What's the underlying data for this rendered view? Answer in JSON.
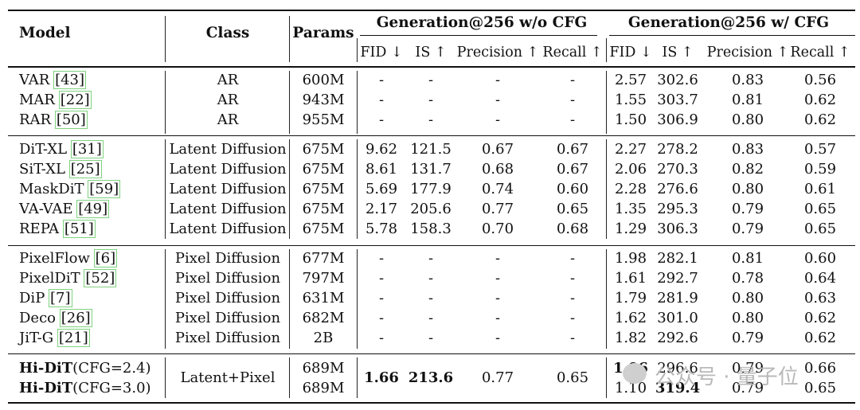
{
  "header": {
    "model": "Model",
    "class": "Class",
    "params": "Params",
    "group_no_cfg": "Generation@256 w/o CFG",
    "group_cfg": "Generation@256 w/ CFG",
    "sub_no_cfg": [
      "FID ↓",
      "IS ↑",
      "Precision ↑",
      "Recall ↑"
    ],
    "sub_cfg": [
      "FID ↓",
      "IS ↑",
      "Precision ↑",
      "Recall ↑"
    ]
  },
  "groups": [
    {
      "rows": [
        {
          "name": "VAR",
          "ref": "[43]",
          "cls": "AR",
          "params": "600M",
          "nocfg": [
            "-",
            "-",
            "-",
            "-"
          ],
          "cfg": [
            "2.57",
            "302.6",
            "0.83",
            "0.56"
          ]
        },
        {
          "name": "MAR",
          "ref": "[22]",
          "cls": "AR",
          "params": "943M",
          "nocfg": [
            "-",
            "-",
            "-",
            "-"
          ],
          "cfg": [
            "1.55",
            "303.7",
            "0.81",
            "0.62"
          ]
        },
        {
          "name": "RAR",
          "ref": "[50]",
          "cls": "AR",
          "params": "955M",
          "nocfg": [
            "-",
            "-",
            "-",
            "-"
          ],
          "cfg": [
            "1.50",
            "306.9",
            "0.80",
            "0.62"
          ]
        }
      ]
    },
    {
      "rows": [
        {
          "name": "DiT-XL",
          "ref": "[31]",
          "cls": "Latent Diffusion",
          "params": "675M",
          "nocfg": [
            "9.62",
            "121.5",
            "0.67",
            "0.67"
          ],
          "cfg": [
            "2.27",
            "278.2",
            "0.83",
            "0.57"
          ]
        },
        {
          "name": "SiT-XL",
          "ref": "[25]",
          "cls": "Latent Diffusion",
          "params": "675M",
          "nocfg": [
            "8.61",
            "131.7",
            "0.68",
            "0.67"
          ],
          "cfg": [
            "2.06",
            "270.3",
            "0.82",
            "0.59"
          ]
        },
        {
          "name": "MaskDiT",
          "ref": "[59]",
          "cls": "Latent Diffusion",
          "params": "675M",
          "nocfg": [
            "5.69",
            "177.9",
            "0.74",
            "0.60"
          ],
          "cfg": [
            "2.28",
            "276.6",
            "0.80",
            "0.61"
          ]
        },
        {
          "name": "VA-VAE",
          "ref": "[49]",
          "cls": "Latent Diffusion",
          "params": "675M",
          "nocfg": [
            "2.17",
            "205.6",
            "0.77",
            "0.65"
          ],
          "cfg": [
            "1.35",
            "295.3",
            "0.79",
            "0.65"
          ]
        },
        {
          "name": "REPA",
          "ref": "[51]",
          "cls": "Latent Diffusion",
          "params": "675M",
          "nocfg": [
            "5.78",
            "158.3",
            "0.70",
            "0.68"
          ],
          "cfg": [
            "1.29",
            "306.3",
            "0.79",
            "0.65"
          ]
        }
      ]
    },
    {
      "rows": [
        {
          "name": "PixelFlow",
          "ref": "[6]",
          "cls": "Pixel Diffusion",
          "params": "677M",
          "nocfg": [
            "-",
            "-",
            "-",
            "-"
          ],
          "cfg": [
            "1.98",
            "282.1",
            "0.81",
            "0.60"
          ]
        },
        {
          "name": "PixelDiT",
          "ref": "[52]",
          "cls": "Pixel Diffusion",
          "params": "797M",
          "nocfg": [
            "-",
            "-",
            "-",
            "-"
          ],
          "cfg": [
            "1.61",
            "292.7",
            "0.78",
            "0.64"
          ]
        },
        {
          "name": "DiP",
          "ref": "[7]",
          "cls": "Pixel Diffusion",
          "params": "631M",
          "nocfg": [
            "-",
            "-",
            "-",
            "-"
          ],
          "cfg": [
            "1.79",
            "281.9",
            "0.80",
            "0.63"
          ]
        },
        {
          "name": "Deco",
          "ref": "[26]",
          "cls": "Pixel Diffusion",
          "params": "682M",
          "nocfg": [
            "-",
            "-",
            "-",
            "-"
          ],
          "cfg": [
            "1.62",
            "301.0",
            "0.80",
            "0.62"
          ]
        },
        {
          "name": "JiT-G",
          "ref": "[21]",
          "cls": "Pixel Diffusion",
          "params": "2B",
          "nocfg": [
            "-",
            "-",
            "-",
            "-"
          ],
          "cfg": [
            "1.82",
            "292.6",
            "0.79",
            "0.62"
          ]
        }
      ]
    }
  ],
  "ours": {
    "name": "Hi-DiT",
    "variants": [
      "(CFG=2.4)",
      "(CFG=3.0)"
    ],
    "cls": "Latent+Pixel",
    "params": [
      "689M",
      "689M"
    ],
    "nocfg": [
      "1.66",
      "213.6",
      "0.77",
      "0.65"
    ],
    "cfg": [
      [
        "1.06",
        "296.6",
        "0.79",
        "0.66"
      ],
      [
        "1.10",
        "319.4",
        "0.79",
        "0.65"
      ]
    ]
  },
  "watermark": "公众号 · 量子位"
}
